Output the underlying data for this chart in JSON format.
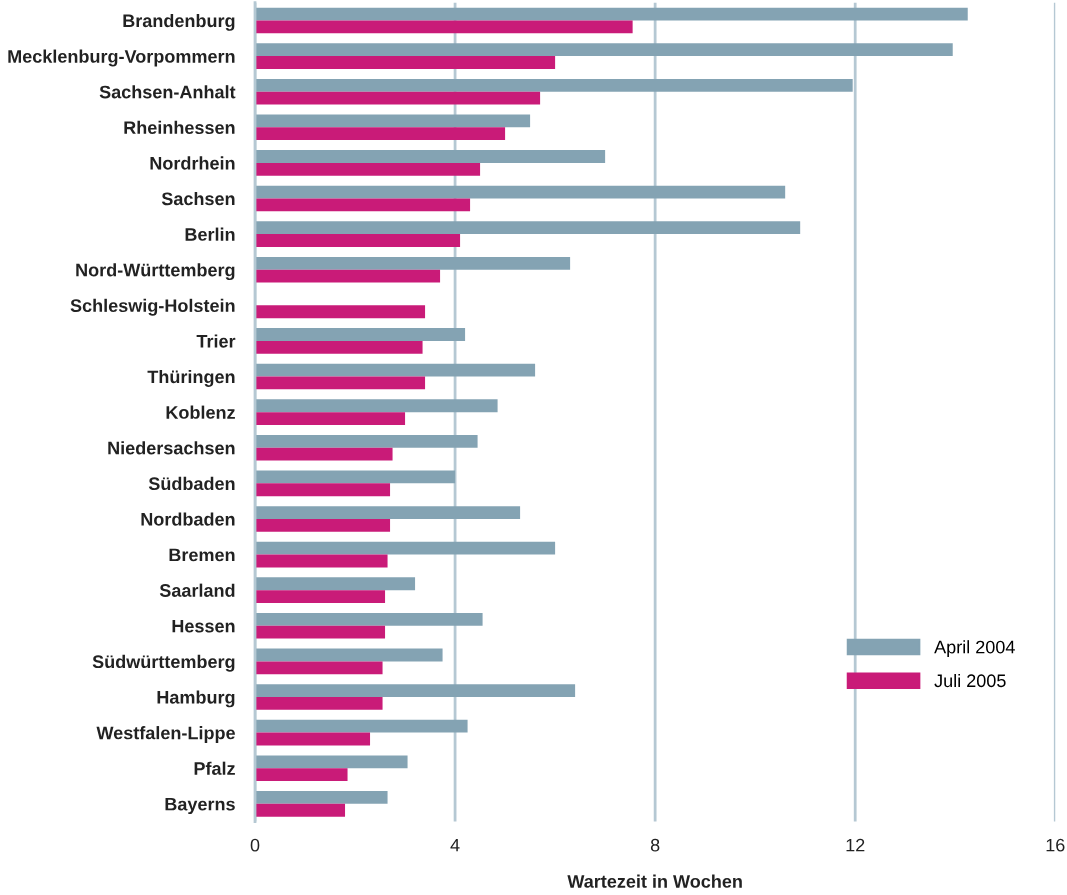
{
  "chart_data": {
    "type": "bar",
    "orientation": "horizontal",
    "xlabel": "Wartezeit in Wochen",
    "categories": [
      "Brandenburg",
      "Mecklenburg-Vorpommern",
      "Sachsen-Anhalt",
      "Rheinhessen",
      "Nordrhein",
      "Sachsen",
      "Berlin",
      "Nord-Württemberg",
      "Schleswig-Holstein",
      "Trier",
      "Thüringen",
      "Koblenz",
      "Niedersachsen",
      "Südbaden",
      "Nordbaden",
      "Bremen",
      "Saarland",
      "Hessen",
      "Südwürttemberg",
      "Hamburg",
      "Westfalen-Lippe",
      "Pfalz",
      "Bayerns"
    ],
    "series": [
      {
        "name": "April 2004",
        "color": "#84a3b3",
        "values": [
          14.25,
          13.95,
          11.95,
          5.5,
          7.0,
          10.6,
          10.9,
          6.3,
          null,
          4.2,
          5.6,
          4.85,
          4.45,
          4.0,
          5.3,
          6.0,
          3.2,
          4.55,
          3.75,
          6.4,
          4.25,
          3.05,
          2.65
        ]
      },
      {
        "name": "Juli 2005",
        "color": "#c91b78",
        "values": [
          7.55,
          6.0,
          5.7,
          5.0,
          4.5,
          4.3,
          4.1,
          3.7,
          3.4,
          3.35,
          3.4,
          3.0,
          2.75,
          2.7,
          2.7,
          2.65,
          2.6,
          2.6,
          2.55,
          2.55,
          2.3,
          1.85,
          1.8
        ]
      }
    ],
    "xlim": [
      0,
      16
    ],
    "xticks": [
      0,
      4,
      8,
      12,
      16
    ],
    "grid": "x",
    "legend": "bottom right"
  }
}
